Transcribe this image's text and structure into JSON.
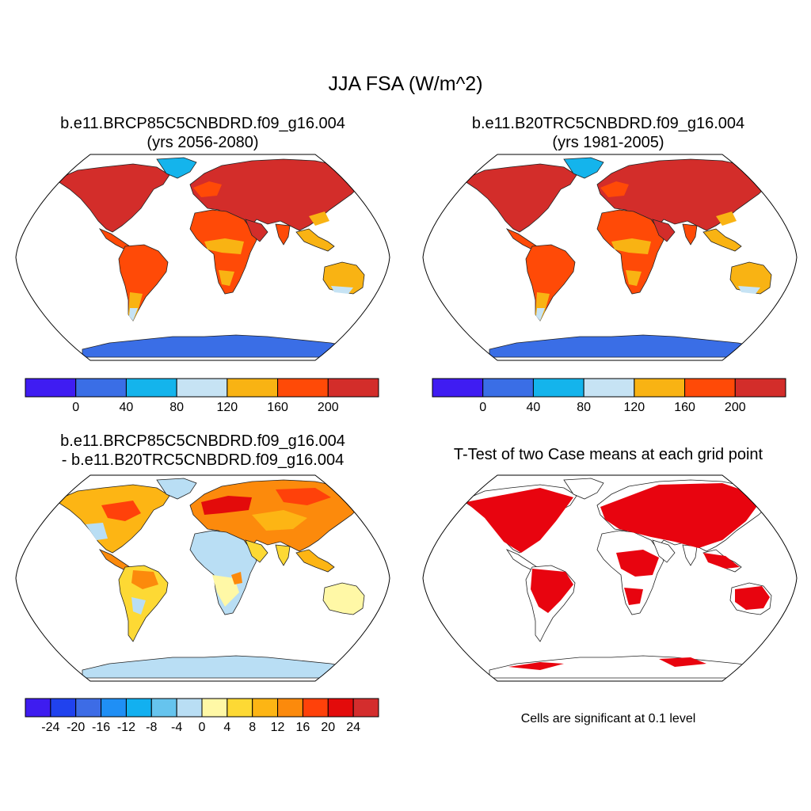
{
  "title": "JJA FSA (W/m^2)",
  "panels": [
    {
      "title_line1": "b.e11.BRCP85C5CNBDRD.f09_g16.004",
      "title_line2": "(yrs 2056-2080)"
    },
    {
      "title_line1": "b.e11.B20TRC5CNBDRD.f09_g16.004",
      "title_line2": "(yrs 1981-2005)"
    },
    {
      "title_line1": "b.e11.BRCP85C5CNBDRD.f09_g16.004",
      "title_line2": "- b.e11.B20TRC5CNBDRD.f09_g16.004"
    },
    {
      "title_line1": "T-Test of two Case means at each grid point",
      "note": "Cells are significant at 0.1 level"
    }
  ],
  "colorbar_abs": {
    "colors": [
      "#3f1cf2",
      "#3a6ee6",
      "#14b4ec",
      "#c6e3f4",
      "#f9b313",
      "#ff4a07",
      "#d32d2a"
    ],
    "labels": [
      "0",
      "40",
      "80",
      "120",
      "160",
      "200"
    ]
  },
  "colorbar_diff": {
    "colors": [
      "#3e1cf0",
      "#2042ee",
      "#3d6ce6",
      "#1f8ff5",
      "#12b0f0",
      "#66c4ee",
      "#b9def4",
      "#fff8a6",
      "#fdd934",
      "#fdb514",
      "#fc8a0c",
      "#ff410a",
      "#e30b0b",
      "#d42d2d"
    ],
    "labels": [
      "-24",
      "-20",
      "-16",
      "-12",
      "-8",
      "-4",
      "0",
      "4",
      "8",
      "12",
      "16",
      "20",
      "24"
    ]
  },
  "significance_color": "#e8040f",
  "antarctica_color_abs": "#3a6ee6",
  "antarctica_color_diff": "#b9def4"
}
